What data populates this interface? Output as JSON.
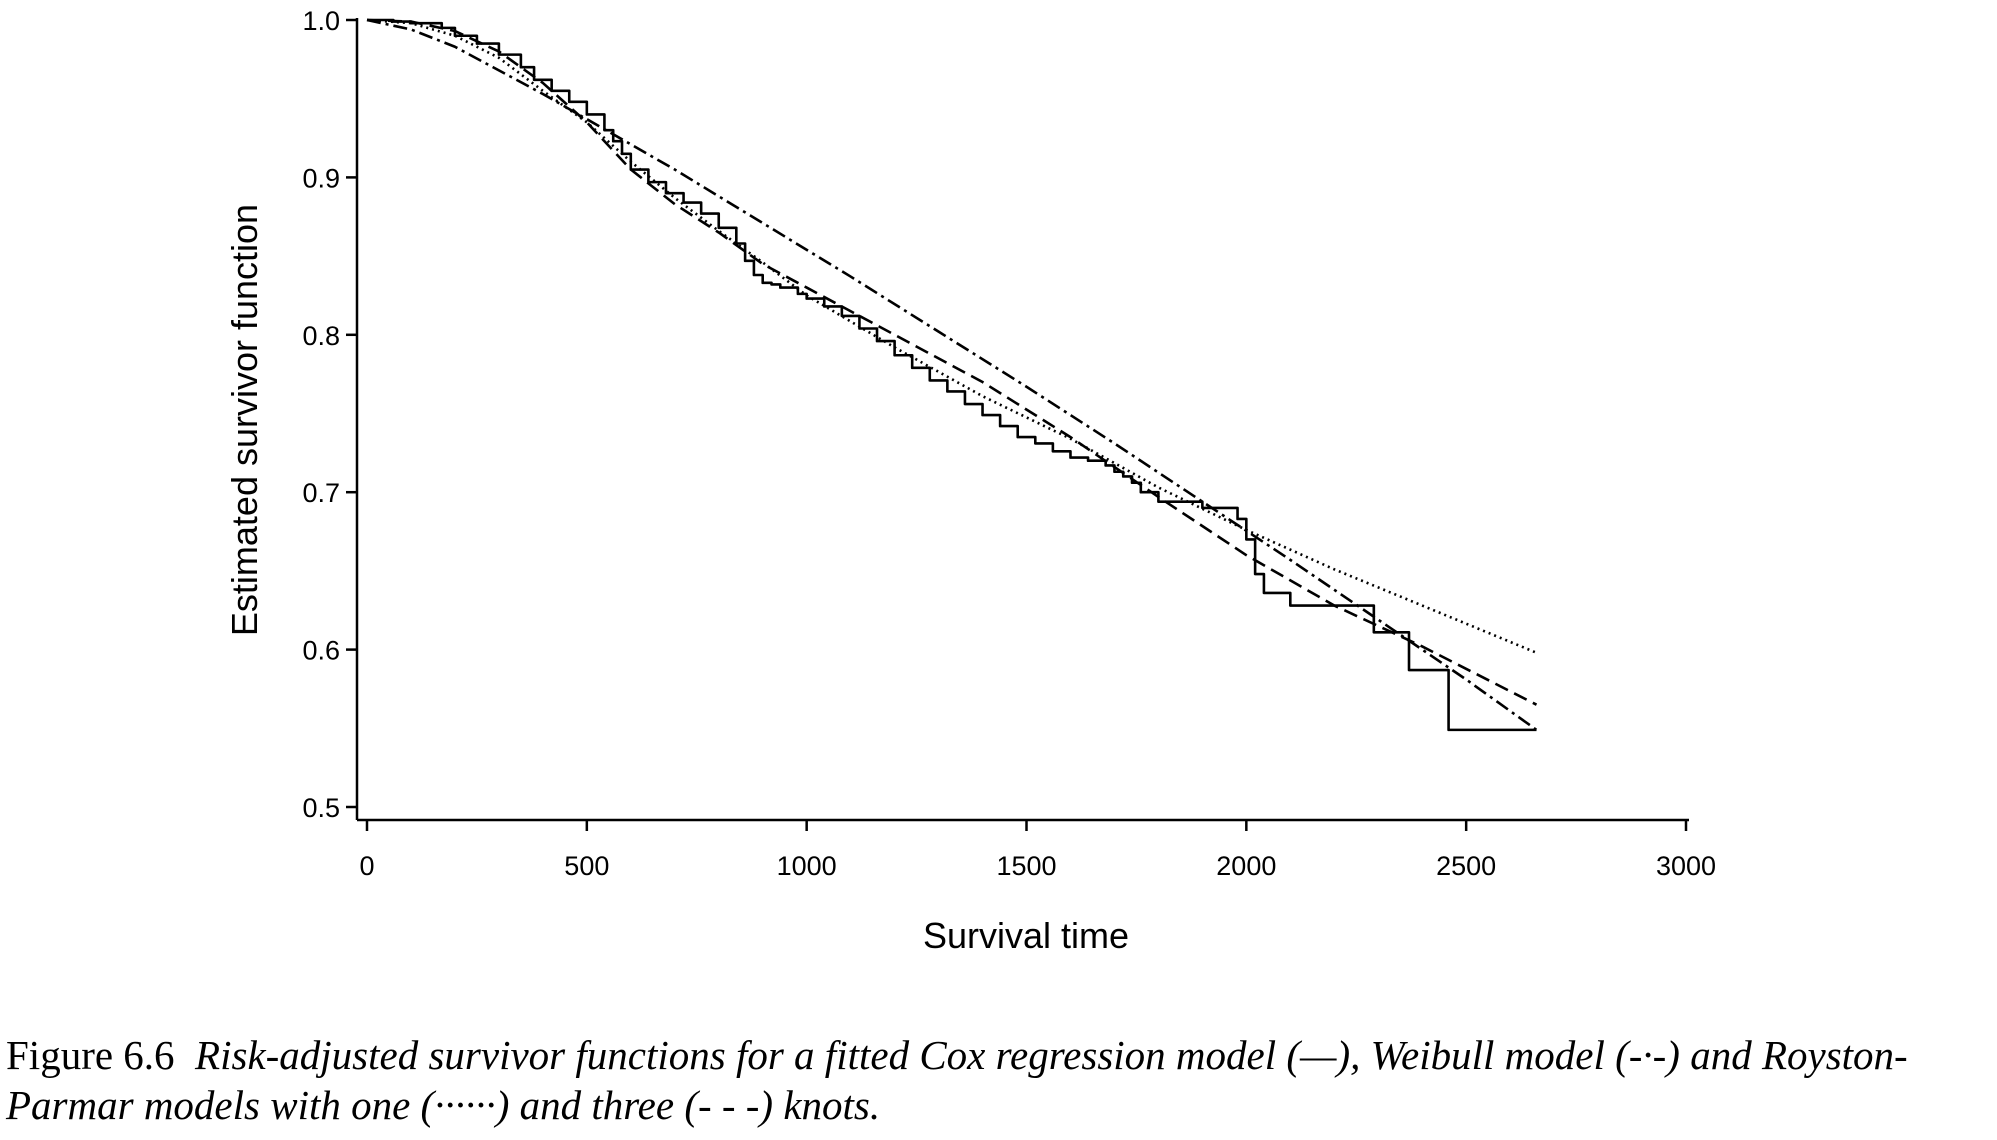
{
  "chart_data": {
    "type": "line",
    "xlabel": "Survival time",
    "ylabel": "Estimated survivor function",
    "xlim": [
      0,
      3000
    ],
    "ylim": [
      0.5,
      1.0
    ],
    "x_ticks": [
      "0",
      "500",
      "1000",
      "1500",
      "2000",
      "2500",
      "3000"
    ],
    "y_ticks": [
      "0.5",
      "0.6",
      "0.7",
      "0.8",
      "0.9",
      "1.0"
    ],
    "grid": false,
    "legend": "none",
    "series": [
      {
        "line_style": "solid",
        "step": true,
        "x": [
          0,
          60,
          100,
          170,
          200,
          250,
          300,
          350,
          380,
          420,
          460,
          500,
          540,
          560,
          580,
          600,
          640,
          680,
          720,
          760,
          800,
          840,
          860,
          880,
          900,
          920,
          940,
          980,
          1000,
          1040,
          1080,
          1120,
          1160,
          1200,
          1240,
          1280,
          1320,
          1360,
          1400,
          1440,
          1480,
          1520,
          1560,
          1600,
          1640,
          1680,
          1700,
          1720,
          1740,
          1760,
          1800,
          1900,
          1980,
          2000,
          2020,
          2040,
          2100,
          2200,
          2290,
          2370,
          2460,
          2660
        ],
        "y": [
          1.0,
          0.999,
          0.998,
          0.995,
          0.99,
          0.985,
          0.978,
          0.97,
          0.962,
          0.955,
          0.948,
          0.94,
          0.93,
          0.923,
          0.915,
          0.905,
          0.897,
          0.89,
          0.884,
          0.877,
          0.868,
          0.858,
          0.847,
          0.838,
          0.833,
          0.832,
          0.83,
          0.826,
          0.823,
          0.818,
          0.812,
          0.804,
          0.796,
          0.787,
          0.779,
          0.771,
          0.764,
          0.756,
          0.749,
          0.742,
          0.735,
          0.731,
          0.726,
          0.722,
          0.72,
          0.717,
          0.713,
          0.71,
          0.706,
          0.7,
          0.694,
          0.69,
          0.683,
          0.67,
          0.648,
          0.636,
          0.628,
          0.628,
          0.611,
          0.587,
          0.549,
          0.549
        ]
      },
      {
        "line_style": "dashdot",
        "x": [
          0,
          100,
          200,
          300,
          400,
          500,
          700,
          900,
          1100,
          1300,
          1500,
          1700,
          1900,
          2100,
          2300,
          2500,
          2660
        ],
        "y": [
          1.0,
          0.994,
          0.983,
          0.968,
          0.953,
          0.937,
          0.905,
          0.871,
          0.837,
          0.802,
          0.767,
          0.731,
          0.694,
          0.657,
          0.619,
          0.581,
          0.549
        ]
      },
      {
        "line_style": "dotted",
        "x": [
          0,
          100,
          200,
          300,
          400,
          500,
          600,
          700,
          800,
          900,
          1000,
          1200,
          1400,
          1600,
          1800,
          2000,
          2200,
          2400,
          2660
        ],
        "y": [
          1.0,
          0.998,
          0.99,
          0.976,
          0.955,
          0.935,
          0.91,
          0.887,
          0.866,
          0.846,
          0.825,
          0.792,
          0.761,
          0.734,
          0.703,
          0.676,
          0.651,
          0.628,
          0.598
        ]
      },
      {
        "line_style": "dashed",
        "x": [
          0,
          100,
          200,
          300,
          400,
          500,
          600,
          700,
          800,
          900,
          1000,
          1200,
          1400,
          1600,
          1800,
          2000,
          2200,
          2400,
          2660
        ],
        "y": [
          1.0,
          0.999,
          0.993,
          0.98,
          0.96,
          0.935,
          0.905,
          0.883,
          0.865,
          0.845,
          0.83,
          0.8,
          0.77,
          0.735,
          0.697,
          0.66,
          0.628,
          0.602,
          0.565
        ]
      }
    ]
  },
  "caption": {
    "label": "Figure 6.6",
    "text": "Risk-adjusted survivor functions for a fitted Cox regression model (—), Weibull model (-·-) and Royston-Parmar models with one (······) and three (- - -) knots."
  }
}
